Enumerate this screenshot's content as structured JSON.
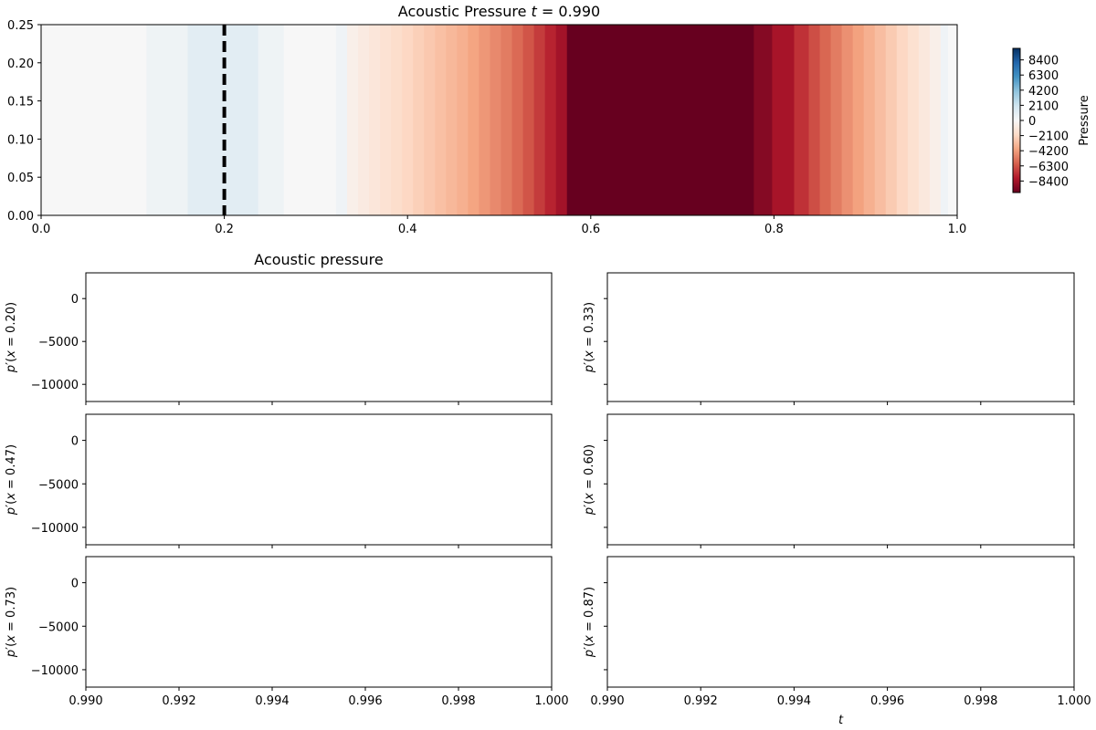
{
  "chart_data": [
    {
      "type": "heatmap",
      "title": "Acoustic Pressure t = 0.990",
      "title_prefix": "Acoustic Pressure ",
      "title_var": "t",
      "title_suffix": " = 0.990",
      "xlim": [
        0.0,
        1.0
      ],
      "ylim": [
        0.0,
        0.25
      ],
      "x_ticks": [
        "0.0",
        "0.2",
        "0.4",
        "0.6",
        "0.8",
        "1.0"
      ],
      "y_ticks": [
        "0.00",
        "0.05",
        "0.10",
        "0.15",
        "0.20",
        "0.25"
      ],
      "marker_line": {
        "x": 0.2,
        "style": "dashed",
        "color": "#000000"
      },
      "colorbar": {
        "label": "Pressure",
        "ticks": [
          "8400",
          "6300",
          "4200",
          "2100",
          "0",
          "−2100",
          "−4200",
          "−6300",
          "−8400"
        ],
        "tick_values": [
          8400,
          6300,
          4200,
          2100,
          0,
          -2100,
          -4200,
          -6300,
          -8400
        ],
        "range": [
          -10000,
          10000
        ],
        "colormap": "RdBu"
      },
      "columns": [
        {
          "x0": 0.0,
          "x1": 0.115,
          "value": 0
        },
        {
          "x0": 0.115,
          "x1": 0.16,
          "value": 500
        },
        {
          "x0": 0.16,
          "x1": 0.237,
          "value": 1100
        },
        {
          "x0": 0.237,
          "x1": 0.265,
          "value": 500
        },
        {
          "x0": 0.265,
          "x1": 0.322,
          "value": 0
        },
        {
          "x0": 0.322,
          "x1": 0.334,
          "value": 400
        },
        {
          "x0": 0.334,
          "x1": 0.346,
          "value": -600
        },
        {
          "x0": 0.346,
          "x1": 0.358,
          "value": -900
        },
        {
          "x0": 0.358,
          "x1": 0.37,
          "value": -1200
        },
        {
          "x0": 0.37,
          "x1": 0.382,
          "value": -1500
        },
        {
          "x0": 0.382,
          "x1": 0.394,
          "value": -1800
        },
        {
          "x0": 0.394,
          "x1": 0.406,
          "value": -2100
        },
        {
          "x0": 0.406,
          "x1": 0.418,
          "value": -2400
        },
        {
          "x0": 0.418,
          "x1": 0.43,
          "value": -2700
        },
        {
          "x0": 0.43,
          "x1": 0.442,
          "value": -3000
        },
        {
          "x0": 0.442,
          "x1": 0.454,
          "value": -3300
        },
        {
          "x0": 0.454,
          "x1": 0.466,
          "value": -3600
        },
        {
          "x0": 0.466,
          "x1": 0.478,
          "value": -4000
        },
        {
          "x0": 0.478,
          "x1": 0.49,
          "value": -4400
        },
        {
          "x0": 0.49,
          "x1": 0.502,
          "value": -4800
        },
        {
          "x0": 0.502,
          "x1": 0.514,
          "value": -5200
        },
        {
          "x0": 0.514,
          "x1": 0.526,
          "value": -5700
        },
        {
          "x0": 0.526,
          "x1": 0.538,
          "value": -6300
        },
        {
          "x0": 0.538,
          "x1": 0.55,
          "value": -7000
        },
        {
          "x0": 0.55,
          "x1": 0.562,
          "value": -7700
        },
        {
          "x0": 0.562,
          "x1": 0.574,
          "value": -8400
        },
        {
          "x0": 0.574,
          "x1": 0.778,
          "value": -10000
        },
        {
          "x0": 0.778,
          "x1": 0.798,
          "value": -9200
        },
        {
          "x0": 0.798,
          "x1": 0.822,
          "value": -8300
        },
        {
          "x0": 0.822,
          "x1": 0.838,
          "value": -7300
        },
        {
          "x0": 0.838,
          "x1": 0.85,
          "value": -6500
        },
        {
          "x0": 0.85,
          "x1": 0.862,
          "value": -5800
        },
        {
          "x0": 0.862,
          "x1": 0.874,
          "value": -5200
        },
        {
          "x0": 0.874,
          "x1": 0.886,
          "value": -4600
        },
        {
          "x0": 0.886,
          "x1": 0.898,
          "value": -4100
        },
        {
          "x0": 0.898,
          "x1": 0.91,
          "value": -3600
        },
        {
          "x0": 0.91,
          "x1": 0.922,
          "value": -3100
        },
        {
          "x0": 0.922,
          "x1": 0.934,
          "value": -2600
        },
        {
          "x0": 0.934,
          "x1": 0.946,
          "value": -2100
        },
        {
          "x0": 0.946,
          "x1": 0.958,
          "value": -1600
        },
        {
          "x0": 0.958,
          "x1": 0.97,
          "value": -1100
        },
        {
          "x0": 0.97,
          "x1": 0.982,
          "value": -600
        },
        {
          "x0": 0.982,
          "x1": 0.99,
          "value": 400
        },
        {
          "x0": 0.99,
          "x1": 1.0,
          "value": 0
        }
      ]
    },
    {
      "type": "line",
      "group_title": "Acoustic pressure",
      "xlim": [
        0.99,
        1.0
      ],
      "ylim": [
        -12000,
        3000
      ],
      "y_ticks": [
        "0",
        "−5000",
        "−10000"
      ],
      "y_tick_values": [
        0,
        -5000,
        -10000
      ],
      "x_ticks": [
        "0.990",
        "0.992",
        "0.994",
        "0.996",
        "0.998",
        "1.000"
      ],
      "x_tick_values": [
        0.99,
        0.992,
        0.994,
        0.996,
        0.998,
        1.0
      ],
      "xlabel": "t",
      "panels": [
        {
          "name": "p'(x = 0.20)",
          "ylabel_value": "0.20",
          "values": []
        },
        {
          "name": "p'(x = 0.33)",
          "ylabel_value": "0.33",
          "values": []
        },
        {
          "name": "p'(x = 0.47)",
          "ylabel_value": "0.47",
          "values": []
        },
        {
          "name": "p'(x = 0.60)",
          "ylabel_value": "0.60",
          "values": []
        },
        {
          "name": "p'(x = 0.73)",
          "ylabel_value": "0.73",
          "values": []
        },
        {
          "name": "p'(x = 0.87)",
          "ylabel_value": "0.87",
          "values": []
        }
      ]
    }
  ]
}
